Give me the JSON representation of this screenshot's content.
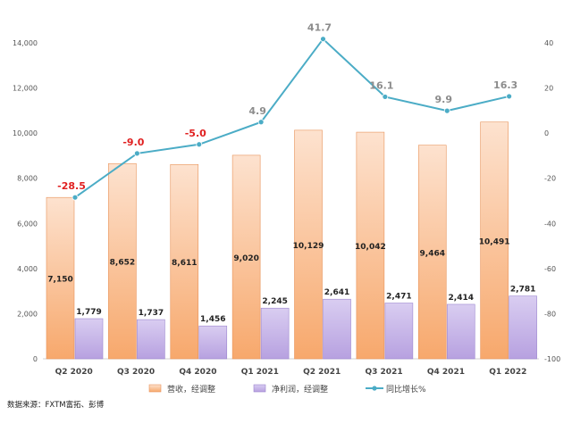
{
  "source_note": "数据来源：FXTM富拓、彭博",
  "chart_data": {
    "type": "bar",
    "categories": [
      "Q2 2020",
      "Q3 2020",
      "Q4 2020",
      "Q1 2021",
      "Q2 2021",
      "Q3 2021",
      "Q4 2021",
      "Q1 2022"
    ],
    "series": [
      {
        "name": "营收，经调整",
        "kind": "bar",
        "axis": "left",
        "color": "#f9b98a",
        "values": [
          7150,
          8652,
          8611,
          9020,
          10129,
          10042,
          9464,
          10491
        ],
        "labels": [
          "7,150",
          "8,652",
          "8,611",
          "9,020",
          "10,129",
          "10,042",
          "9,464",
          "10,491"
        ]
      },
      {
        "name": "净利润，经调整",
        "kind": "bar",
        "axis": "left",
        "color": "#c9b6e8",
        "values": [
          1779,
          1737,
          1456,
          2245,
          2641,
          2471,
          2414,
          2781
        ],
        "labels": [
          "1,779",
          "1,737",
          "1,456",
          "2,245",
          "2,641",
          "2,471",
          "2,414",
          "2,781"
        ]
      },
      {
        "name": "同比增长%",
        "kind": "line",
        "axis": "right",
        "color": "#4bacc6",
        "values": [
          -28.5,
          -9.0,
          -5.0,
          4.9,
          41.7,
          16.1,
          9.9,
          16.3
        ],
        "labels": [
          "-28.5",
          "-9.0",
          "-5.0",
          "4.9",
          "41.7",
          "16.1",
          "9.9",
          "16.3"
        ],
        "negative_label_color": "#e02020",
        "positive_label_color": "#8c8c8c"
      }
    ],
    "y_left": {
      "min": 0,
      "max": 14000,
      "ticks": [
        "0",
        "2,000",
        "4,000",
        "6,000",
        "8,000",
        "10,000",
        "12,000",
        "14,000"
      ]
    },
    "y_right": {
      "min": -100,
      "max": 40,
      "ticks": [
        "-100",
        "-80",
        "-60",
        "-40",
        "-20",
        "0",
        "20",
        "40"
      ]
    },
    "grid": false,
    "legend_position": "bottom"
  }
}
